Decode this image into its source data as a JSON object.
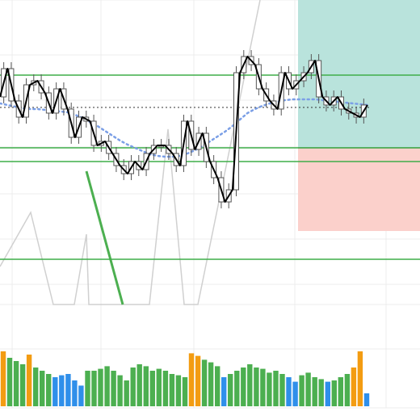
{
  "chart_data": {
    "type": "candlestick",
    "title": "",
    "xlabel": "",
    "ylabel": "",
    "grid": true,
    "legend": "none",
    "ylim": [
      0,
      520
    ],
    "colors": {
      "candle_body": "#ffffff",
      "candle_outline": "#555555",
      "price_line": "#000000",
      "moving_average": "#7b9fe6",
      "level_line": "#3fae49",
      "reference_line": "#333333",
      "diagonal_line": "#d0d0d0",
      "trend_segment": "#4caf50",
      "profit_zone": "#b9e3dc",
      "loss_zone": "#fbd0cb",
      "volume_green": "#4caf50",
      "volume_blue": "#2f8fea",
      "volume_orange": "#f39c12",
      "grid": "#ececec"
    },
    "price_closes": [
      400,
      435,
      395,
      375,
      415,
      420,
      405,
      380,
      410,
      385,
      350,
      375,
      370,
      340,
      345,
      330,
      315,
      305,
      320,
      310,
      330,
      340,
      340,
      330,
      315,
      370,
      335,
      355,
      320,
      300,
      270,
      285,
      430,
      450,
      440,
      410,
      395,
      385,
      430,
      410,
      420,
      430,
      445,
      400,
      390,
      400,
      385,
      380,
      375,
      390
    ],
    "moving_average": [
      392,
      390,
      388,
      386,
      385,
      385,
      384,
      383,
      382,
      381,
      378,
      374,
      369,
      364,
      358,
      352,
      346,
      341,
      337,
      333,
      329,
      327,
      326,
      326,
      327,
      330,
      334,
      339,
      345,
      351,
      357,
      364,
      372,
      380,
      385,
      389,
      392,
      394,
      396,
      397,
      397,
      397,
      397,
      396,
      395,
      394,
      393,
      392,
      391,
      390
    ],
    "horizontal_levels": [
      427,
      337,
      320,
      199
    ],
    "reference_level": 387,
    "volume": [
      {
        "v": 85,
        "c": "orange"
      },
      {
        "v": 75,
        "c": "green"
      },
      {
        "v": 70,
        "c": "green"
      },
      {
        "v": 65,
        "c": "green"
      },
      {
        "v": 80,
        "c": "orange"
      },
      {
        "v": 60,
        "c": "green"
      },
      {
        "v": 55,
        "c": "green"
      },
      {
        "v": 50,
        "c": "green"
      },
      {
        "v": 45,
        "c": "blue"
      },
      {
        "v": 48,
        "c": "blue"
      },
      {
        "v": 50,
        "c": "blue"
      },
      {
        "v": 40,
        "c": "blue"
      },
      {
        "v": 32,
        "c": "blue"
      },
      {
        "v": 55,
        "c": "green"
      },
      {
        "v": 55,
        "c": "green"
      },
      {
        "v": 58,
        "c": "green"
      },
      {
        "v": 62,
        "c": "green"
      },
      {
        "v": 55,
        "c": "green"
      },
      {
        "v": 48,
        "c": "green"
      },
      {
        "v": 40,
        "c": "green"
      },
      {
        "v": 60,
        "c": "green"
      },
      {
        "v": 65,
        "c": "green"
      },
      {
        "v": 62,
        "c": "green"
      },
      {
        "v": 55,
        "c": "green"
      },
      {
        "v": 58,
        "c": "green"
      },
      {
        "v": 55,
        "c": "green"
      },
      {
        "v": 50,
        "c": "green"
      },
      {
        "v": 48,
        "c": "green"
      },
      {
        "v": 45,
        "c": "green"
      },
      {
        "v": 82,
        "c": "orange"
      },
      {
        "v": 78,
        "c": "orange"
      },
      {
        "v": 72,
        "c": "green"
      },
      {
        "v": 68,
        "c": "green"
      },
      {
        "v": 62,
        "c": "green"
      },
      {
        "v": 45,
        "c": "blue"
      },
      {
        "v": 50,
        "c": "green"
      },
      {
        "v": 55,
        "c": "green"
      },
      {
        "v": 60,
        "c": "green"
      },
      {
        "v": 65,
        "c": "green"
      },
      {
        "v": 60,
        "c": "green"
      },
      {
        "v": 58,
        "c": "green"
      },
      {
        "v": 52,
        "c": "green"
      },
      {
        "v": 55,
        "c": "green"
      },
      {
        "v": 50,
        "c": "green"
      },
      {
        "v": 45,
        "c": "blue"
      },
      {
        "v": 38,
        "c": "blue"
      },
      {
        "v": 48,
        "c": "green"
      },
      {
        "v": 52,
        "c": "green"
      },
      {
        "v": 45,
        "c": "green"
      },
      {
        "v": 42,
        "c": "green"
      },
      {
        "v": 38,
        "c": "blue"
      },
      {
        "v": 40,
        "c": "green"
      },
      {
        "v": 45,
        "c": "green"
      },
      {
        "v": 50,
        "c": "green"
      },
      {
        "v": 60,
        "c": "orange"
      },
      {
        "v": 85,
        "c": "orange"
      },
      {
        "v": 20,
        "c": "blue"
      }
    ]
  }
}
